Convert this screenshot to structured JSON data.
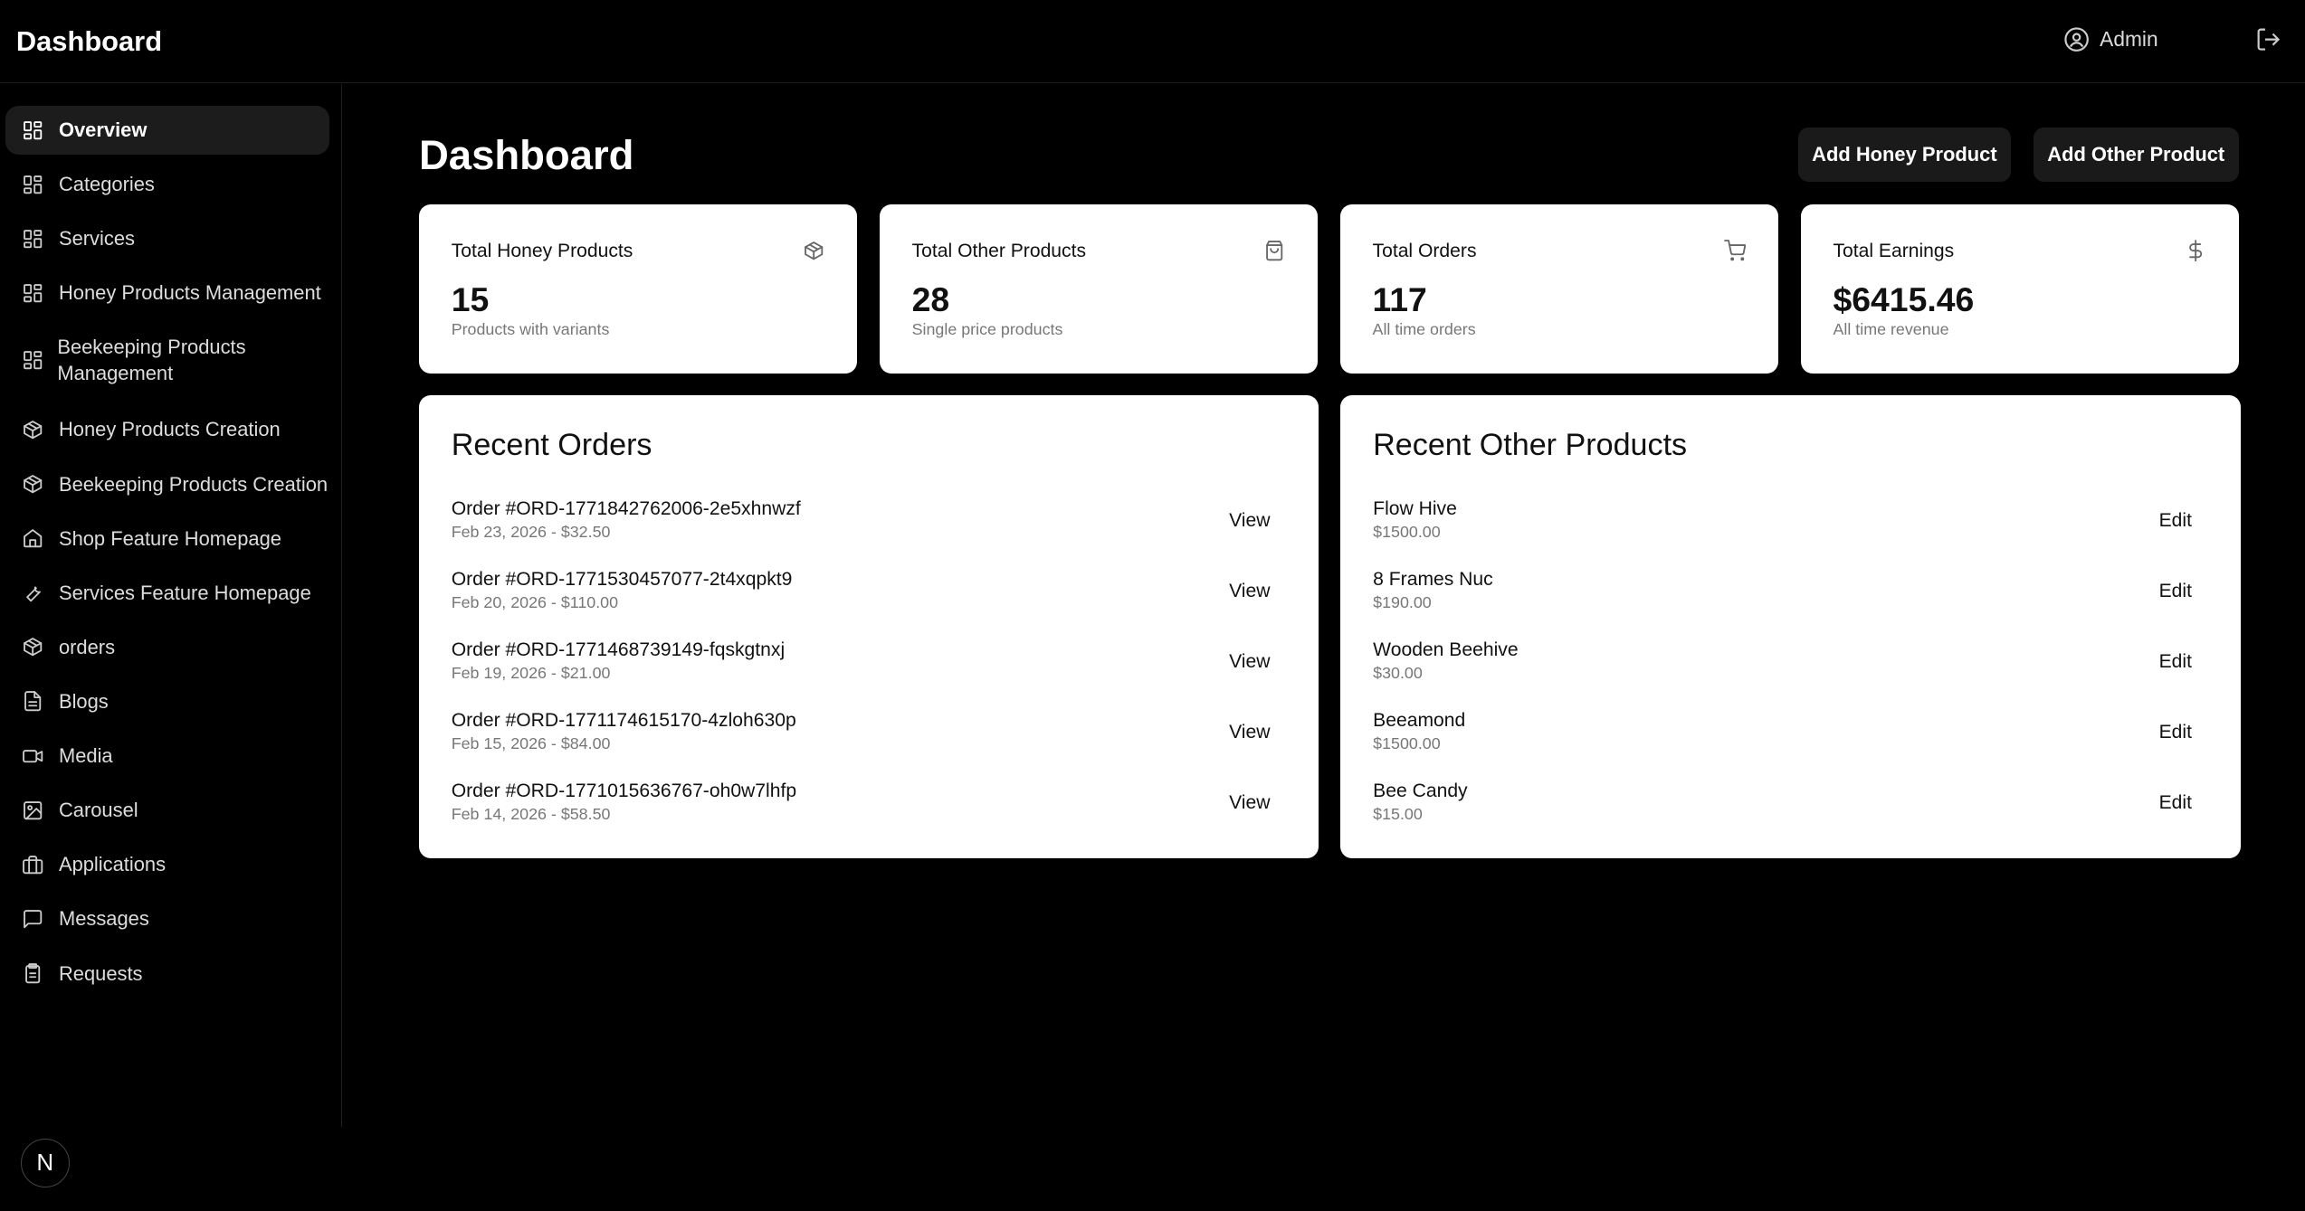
{
  "header": {
    "brand": "Dashboard",
    "user": "Admin"
  },
  "sidebar": {
    "items": [
      {
        "label": "Overview",
        "icon": "grid-icon",
        "active": true
      },
      {
        "label": "Categories",
        "icon": "grid-icon"
      },
      {
        "label": "Services",
        "icon": "grid-icon"
      },
      {
        "label": "Honey Products Management",
        "icon": "grid-icon"
      },
      {
        "label": "Beekeeping Products Management",
        "icon": "grid-icon"
      },
      {
        "label": "Honey Products Creation",
        "icon": "package-icon"
      },
      {
        "label": "Beekeeping Products Creation",
        "icon": "package-icon"
      },
      {
        "label": "Shop Feature Homepage",
        "icon": "home-icon"
      },
      {
        "label": "Services Feature Homepage",
        "icon": "wrench-icon"
      },
      {
        "label": "orders",
        "icon": "package-icon"
      },
      {
        "label": "Blogs",
        "icon": "file-text-icon"
      },
      {
        "label": "Media",
        "icon": "video-icon"
      },
      {
        "label": "Carousel",
        "icon": "image-icon"
      },
      {
        "label": "Applications",
        "icon": "briefcase-icon"
      },
      {
        "label": "Messages",
        "icon": "message-icon"
      },
      {
        "label": "Requests",
        "icon": "clipboard-icon"
      }
    ],
    "logo": "N"
  },
  "main": {
    "title": "Dashboard",
    "add_honey": "Add Honey Product",
    "add_other": "Add Other Product",
    "stats": [
      {
        "label": "Total Honey Products",
        "value": "15",
        "sub": "Products with variants",
        "icon": "package-icon"
      },
      {
        "label": "Total Other Products",
        "value": "28",
        "sub": "Single price products",
        "icon": "shopping-bag-icon"
      },
      {
        "label": "Total Orders",
        "value": "117",
        "sub": "All time orders",
        "icon": "cart-icon"
      },
      {
        "label": "Total Earnings",
        "value": "$6415.46",
        "sub": "All time revenue",
        "icon": "dollar-icon"
      }
    ],
    "recent_orders": {
      "title": "Recent Orders",
      "action": "View",
      "items": [
        {
          "title": "Order #ORD-1771842762006-2e5xhnwzf",
          "sub": "Feb 23, 2026 - $32.50"
        },
        {
          "title": "Order #ORD-1771530457077-2t4xqpkt9",
          "sub": "Feb 20, 2026 - $110.00"
        },
        {
          "title": "Order #ORD-1771468739149-fqskgtnxj",
          "sub": "Feb 19, 2026 - $21.00"
        },
        {
          "title": "Order #ORD-1771174615170-4zloh630p",
          "sub": "Feb 15, 2026 - $84.00"
        },
        {
          "title": "Order #ORD-1771015636767-oh0w7lhfp",
          "sub": "Feb 14, 2026 - $58.50"
        }
      ]
    },
    "recent_products": {
      "title": "Recent Other Products",
      "action": "Edit",
      "items": [
        {
          "title": "Flow Hive",
          "sub": "$1500.00"
        },
        {
          "title": "8 Frames Nuc",
          "sub": "$190.00"
        },
        {
          "title": "Wooden Beehive",
          "sub": "$30.00"
        },
        {
          "title": "Beeamond",
          "sub": "$1500.00"
        },
        {
          "title": "Bee Candy",
          "sub": "$15.00"
        }
      ]
    }
  }
}
